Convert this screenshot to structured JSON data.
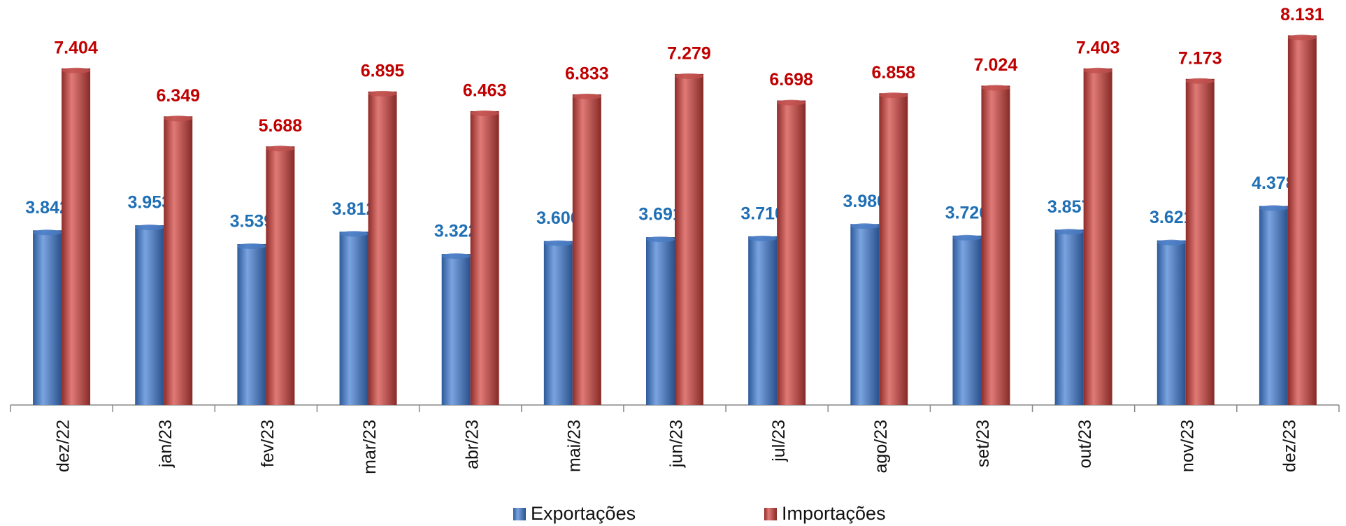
{
  "chart_data": {
    "type": "bar",
    "categories": [
      "dez/22",
      "jan/23",
      "fev/23",
      "mar/23",
      "abr/23",
      "mai/23",
      "jun/23",
      "jul/23",
      "ago/23",
      "set/23",
      "out/23",
      "nov/23",
      "dez/23"
    ],
    "series": [
      {
        "name": "Exportações",
        "color": "#4a7cc4",
        "values": [
          3842,
          3953,
          3539,
          3812,
          3322,
          3606,
          3691,
          3710,
          3980,
          3726,
          3857,
          3621,
          4378
        ],
        "value_labels": [
          "3.842",
          "3.953",
          "3.539",
          "3.812",
          "3.322",
          "3.606",
          "3.691",
          "3.710",
          "3.980",
          "3.726",
          "3.857",
          "3.621",
          "4.378"
        ]
      },
      {
        "name": "Importações",
        "color": "#c0504d",
        "values": [
          7404,
          6349,
          5688,
          6895,
          6463,
          6833,
          7279,
          6698,
          6858,
          7024,
          7403,
          7173,
          8131
        ],
        "value_labels": [
          "7.404",
          "6.349",
          "5.688",
          "6.895",
          "6.463",
          "6.833",
          "7.279",
          "6.698",
          "6.858",
          "7.024",
          "7.403",
          "7.173",
          "8.131"
        ]
      }
    ]
  }
}
